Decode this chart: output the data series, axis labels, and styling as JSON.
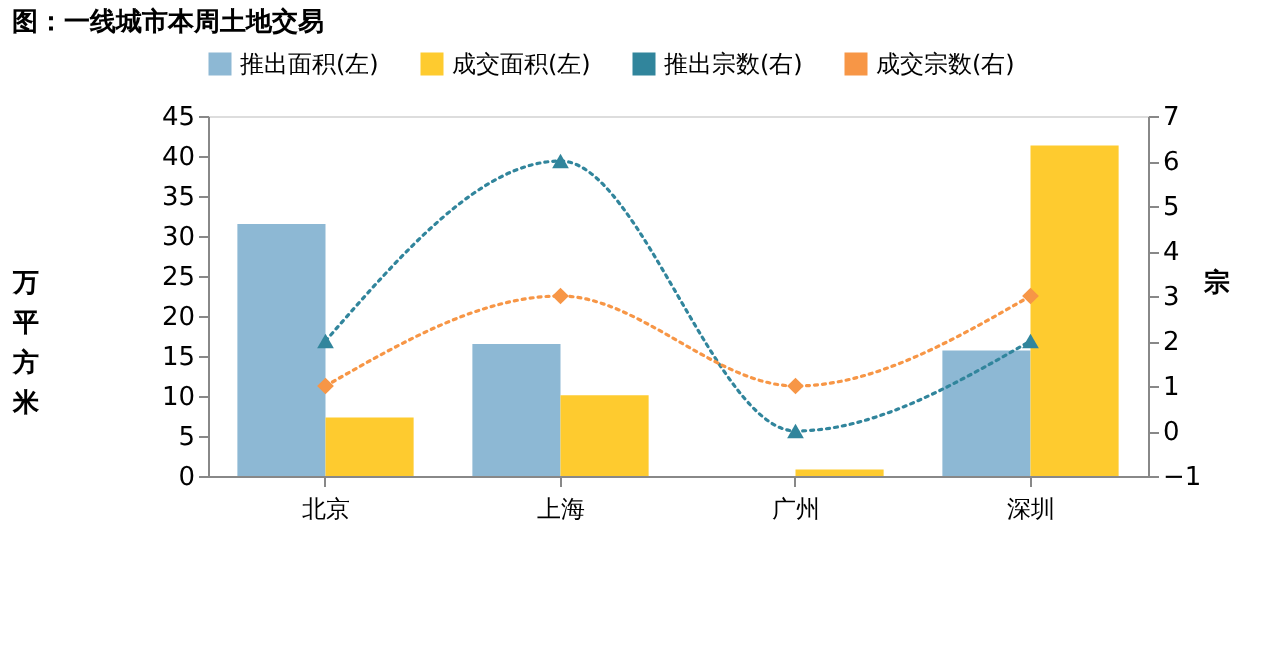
{
  "chart_data": {
    "type": "bar",
    "title": "图：一线城市本周土地交易",
    "categories": [
      "北京",
      "上海",
      "广州",
      "深圳"
    ],
    "ylabel": "万平方米",
    "y2label": "宗",
    "ylim": [
      0,
      45
    ],
    "yticks": [
      0,
      5,
      10,
      15,
      20,
      25,
      30,
      35,
      40,
      45
    ],
    "y2lim": [
      -1,
      7
    ],
    "y2ticks": [
      -1,
      0,
      1,
      2,
      3,
      4,
      5,
      6,
      7
    ],
    "series": [
      {
        "name": "推出面积(左)",
        "color": "#8db8d4",
        "values": [
          31.5,
          16.5,
          0,
          15.7
        ]
      },
      {
        "name": "成交面积(左)",
        "color": "#fecb2f",
        "values": [
          7.3,
          10.1,
          0.8,
          41.3
        ]
      },
      {
        "name": "推出宗数(右)",
        "color": "#31859c",
        "type": "line",
        "axis": "y2",
        "marker": "triangle",
        "line_style": "dotted",
        "values": [
          2,
          6,
          0,
          2
        ]
      },
      {
        "name": "成交宗数(右)",
        "color": "#f79646",
        "type": "line",
        "axis": "y2",
        "marker": "diamond",
        "line_style": "dotted",
        "values": [
          1,
          3,
          1,
          3
        ]
      }
    ],
    "grid": false,
    "legend": "top"
  }
}
